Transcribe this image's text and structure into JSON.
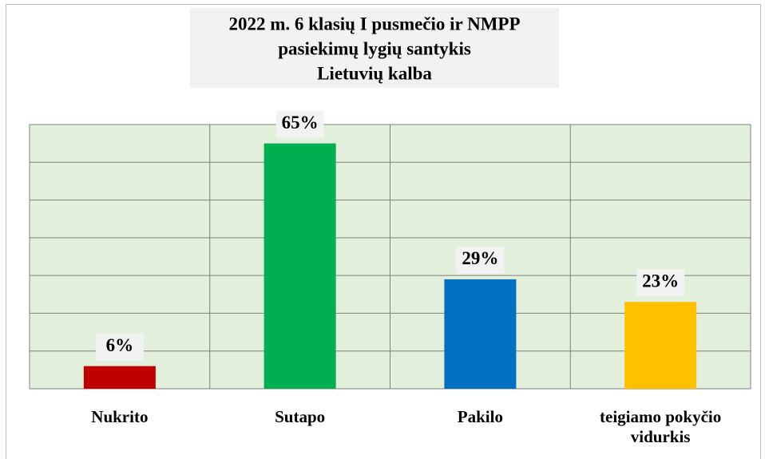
{
  "chart_data": {
    "type": "bar",
    "title": [
      "2022 m. 6 klasių I pusmečio ir NMPP",
      "pasiekimų lygių  santykis",
      "Lietuvių kalba"
    ],
    "categories": [
      "Nukrito",
      "Sutapo",
      "Pakilo",
      "teigiamo pokyčio vidurkis"
    ],
    "values": [
      6,
      65,
      29,
      23
    ],
    "value_labels": [
      "6%",
      "65%",
      "29%",
      "23%"
    ],
    "colors": [
      "#c00000",
      "#00b050",
      "#0070c0",
      "#ffc000"
    ],
    "ylim": [
      0,
      70
    ],
    "yticks": [
      0,
      10,
      20,
      30,
      40,
      50,
      60,
      70
    ],
    "grid": true
  }
}
